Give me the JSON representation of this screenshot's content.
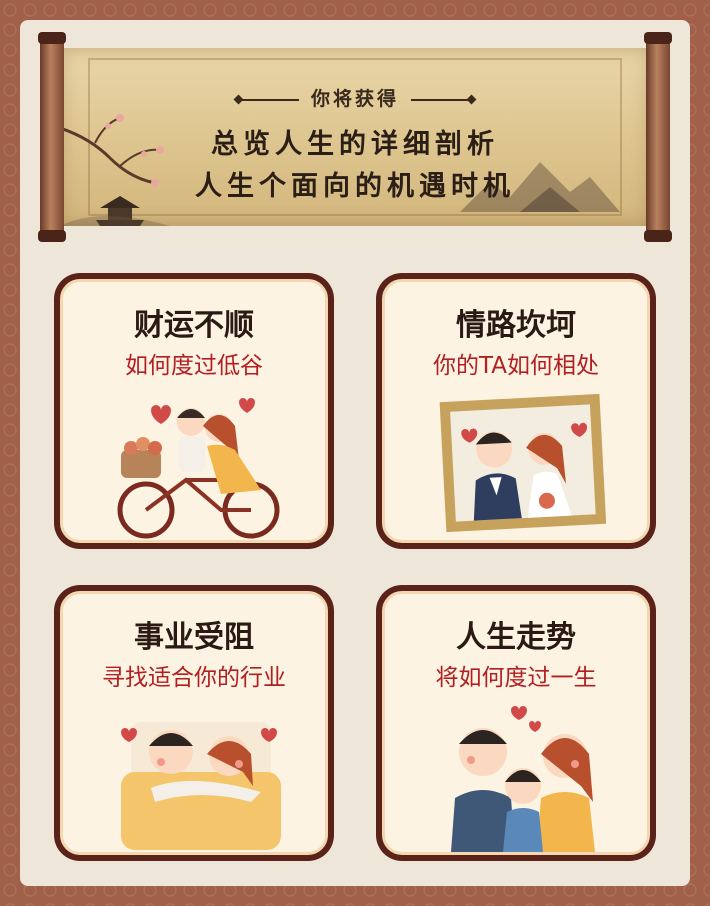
{
  "scroll": {
    "heading": "你将获得",
    "line1": "总览人生的详细剖析",
    "line2": "人生个面向的机遇时机"
  },
  "cards": [
    {
      "title": "财运不顺",
      "subtitle": "如何度过低谷",
      "art": "couple-bicycle-illustration"
    },
    {
      "title": "情路坎坷",
      "subtitle": "你的TA如何相处",
      "art": "wedding-photo-frame-illustration"
    },
    {
      "title": "事业受阻",
      "subtitle": "寻找适合你的行业",
      "art": "couple-hug-illustration"
    },
    {
      "title": "人生走势",
      "subtitle": "将如何度过一生",
      "art": "family-portrait-illustration"
    }
  ],
  "colors": {
    "border": "#a0604a",
    "panel": "#efe6da",
    "card_frame": "#5a2218",
    "card_bg": "#fdf3e2",
    "subtitle": "#b21f22"
  }
}
